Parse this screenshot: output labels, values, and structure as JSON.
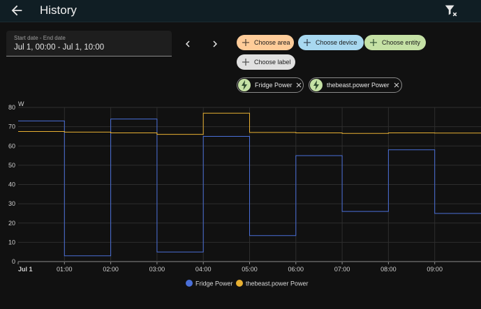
{
  "header": {
    "title": "History",
    "back_icon": "arrow-left-icon",
    "filter_icon": "filter-remove-icon"
  },
  "date_range": {
    "label": "Start date - End date",
    "value": "Jul 1, 00:00 - Jul 1, 10:00"
  },
  "target_chips": [
    {
      "label": "Choose area",
      "color": "#ffcc99"
    },
    {
      "label": "Choose device",
      "color": "#a8d8f0"
    },
    {
      "label": "Choose entity",
      "color": "#c5e1a5"
    },
    {
      "label": "Choose label",
      "color": "#e0e0e0"
    }
  ],
  "selected_entities": [
    {
      "label": "Fridge Power",
      "icon": "lightning-bolt-icon"
    },
    {
      "label": "thebeast.power Power",
      "icon": "lightning-bolt-icon"
    }
  ],
  "chart_data": {
    "type": "line",
    "step": true,
    "unit": "W",
    "ylim": [
      0,
      80
    ],
    "yticks": [
      0,
      10,
      20,
      30,
      40,
      50,
      60,
      70,
      80
    ],
    "xlim": [
      0,
      10
    ],
    "xticks": [
      {
        "x": 0,
        "label": "Jul 1"
      },
      {
        "x": 1,
        "label": "01:00"
      },
      {
        "x": 2,
        "label": "02:00"
      },
      {
        "x": 3,
        "label": "03:00"
      },
      {
        "x": 4,
        "label": "04:00"
      },
      {
        "x": 5,
        "label": "05:00"
      },
      {
        "x": 6,
        "label": "06:00"
      },
      {
        "x": 7,
        "label": "07:00"
      },
      {
        "x": 8,
        "label": "08:00"
      },
      {
        "x": 9,
        "label": "09:00"
      }
    ],
    "grid": true,
    "legend_position": "bottom",
    "series": [
      {
        "name": "Fridge Power",
        "color": "#4a6fd8",
        "points": [
          [
            0,
            73
          ],
          [
            1,
            3
          ],
          [
            2,
            74
          ],
          [
            3,
            5
          ],
          [
            4,
            65
          ],
          [
            5,
            13.5
          ],
          [
            6,
            55
          ],
          [
            7,
            26
          ],
          [
            8,
            58
          ],
          [
            9,
            25
          ],
          [
            10,
            25
          ]
        ]
      },
      {
        "name": "thebeast.power Power",
        "color": "#e8b032",
        "points": [
          [
            0,
            67.5
          ],
          [
            1,
            67.2
          ],
          [
            2,
            66.8
          ],
          [
            3,
            66
          ],
          [
            4,
            77
          ],
          [
            5,
            67
          ],
          [
            6,
            66.8
          ],
          [
            7,
            66.5
          ],
          [
            8,
            66.8
          ],
          [
            9,
            66.7
          ],
          [
            10,
            66.5
          ]
        ]
      }
    ]
  }
}
